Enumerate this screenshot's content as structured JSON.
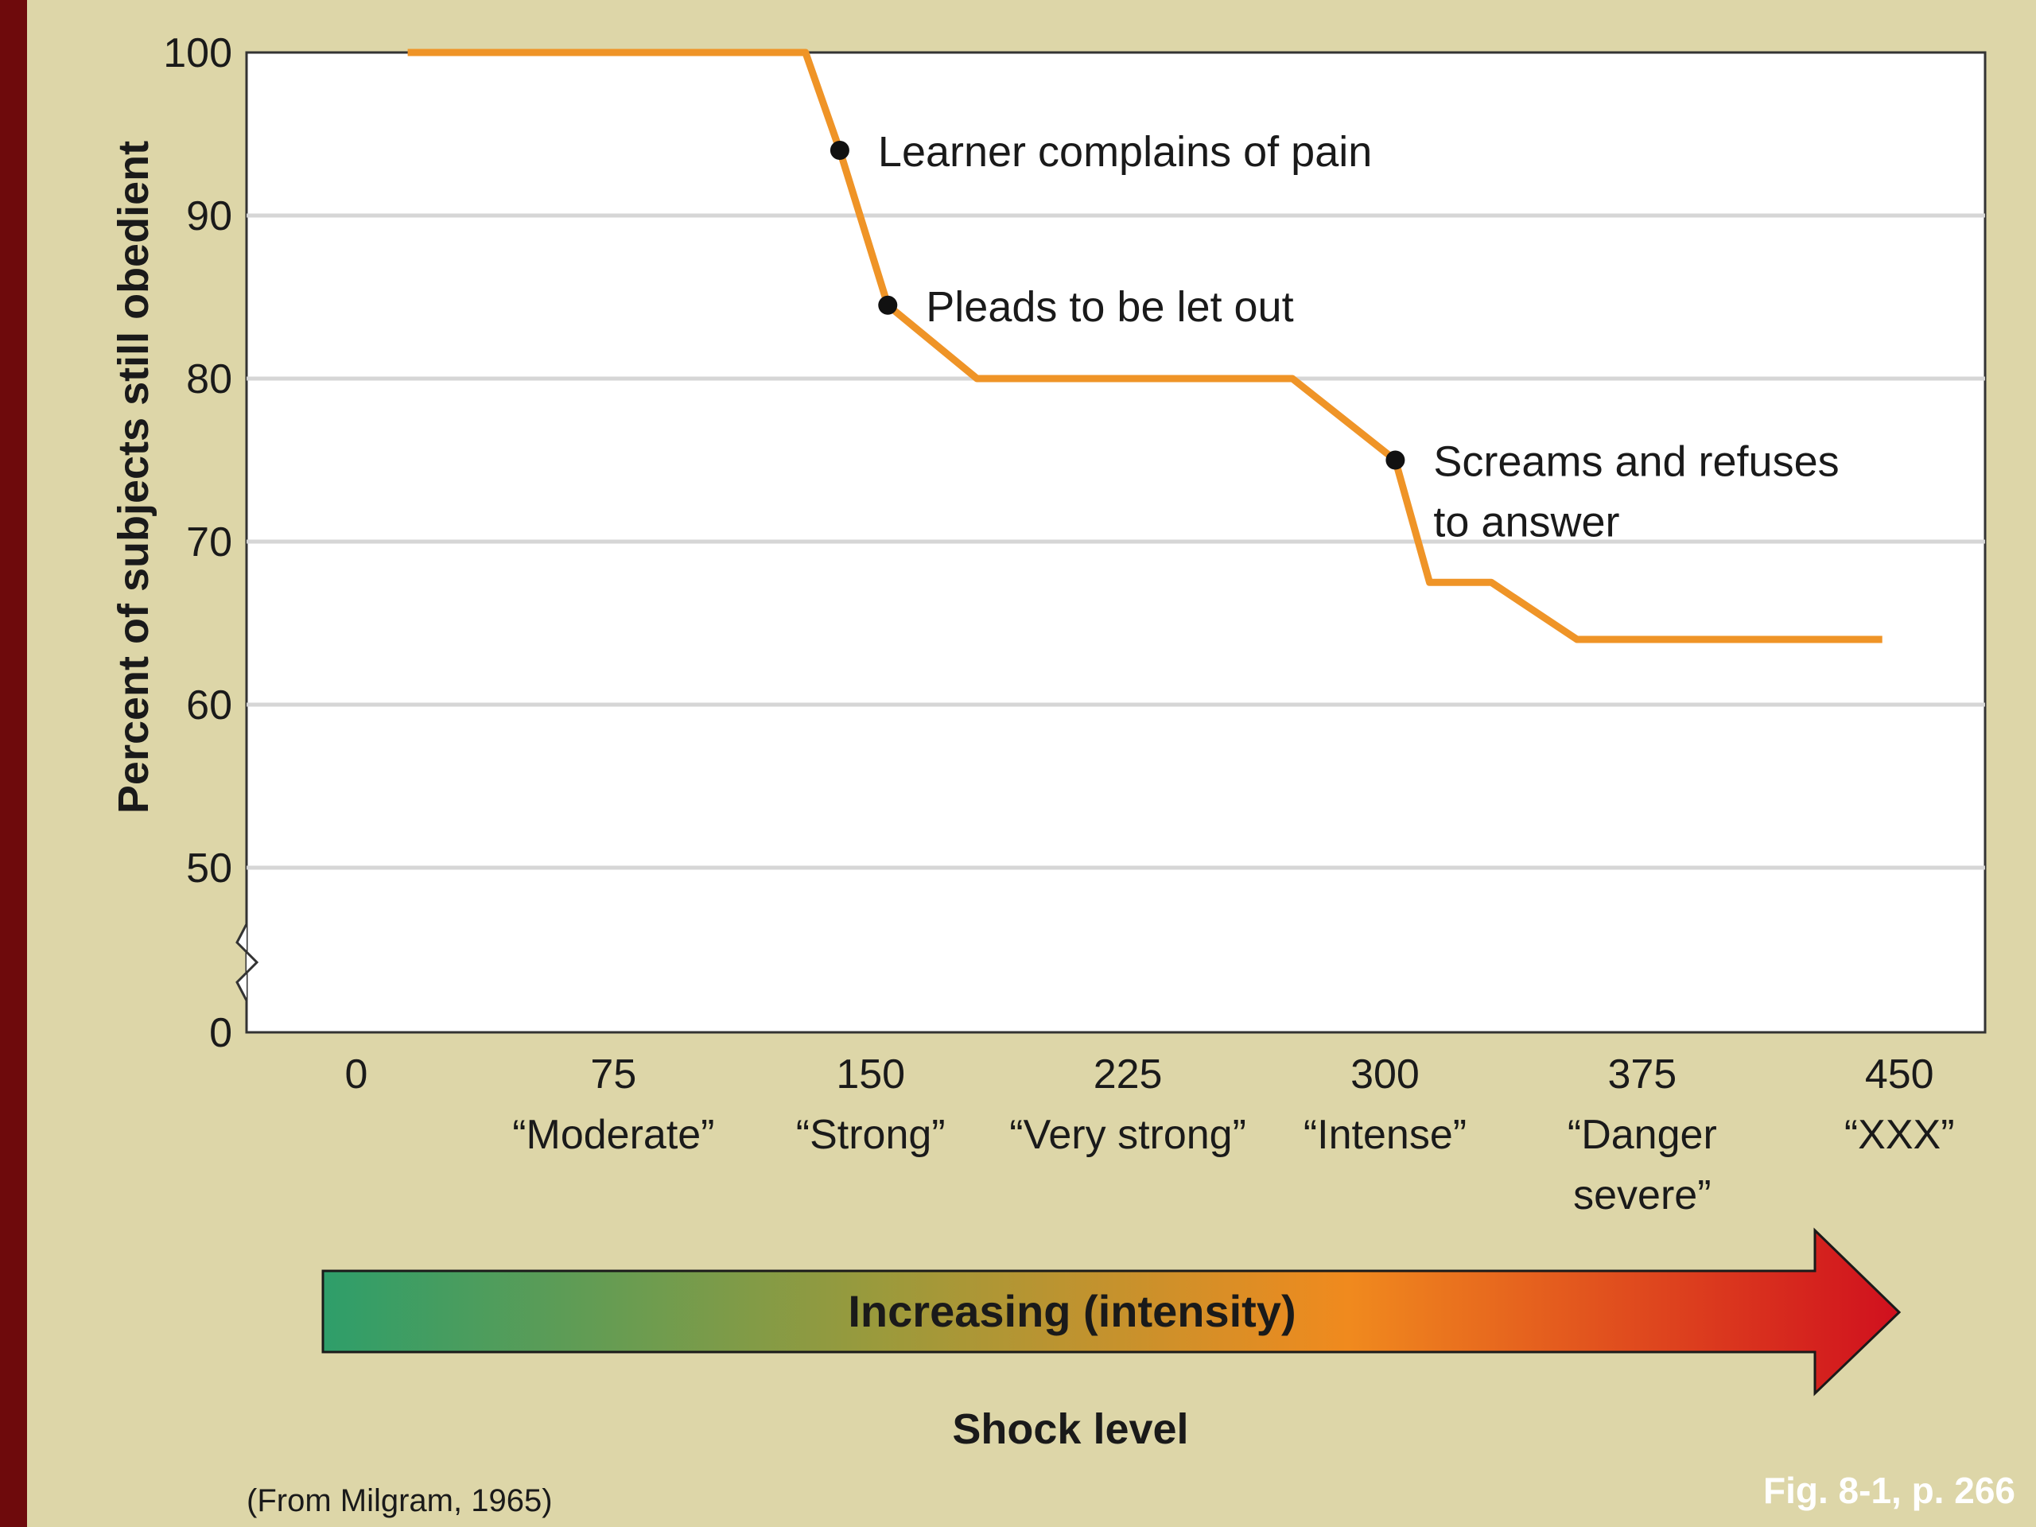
{
  "chart_data": {
    "type": "line",
    "title": "",
    "xlabel": "Shock level",
    "ylabel": "Percent of subjects still obedient",
    "x_ticks": [
      {
        "value": 0,
        "label": [
          "0"
        ]
      },
      {
        "value": 75,
        "label": [
          "75",
          "“Moderate”"
        ]
      },
      {
        "value": 150,
        "label": [
          "150",
          "“Strong”"
        ]
      },
      {
        "value": 225,
        "label": [
          "225",
          "“Very strong”"
        ]
      },
      {
        "value": 300,
        "label": [
          "300",
          "“Intense”"
        ]
      },
      {
        "value": 375,
        "label": [
          "375",
          "“Danger",
          "severe”"
        ]
      },
      {
        "value": 450,
        "label": [
          "450",
          "“XXX”"
        ]
      }
    ],
    "y_ticks": [
      0,
      50,
      60,
      70,
      80,
      90,
      100
    ],
    "y_axis_break": true,
    "ylim": [
      0,
      100
    ],
    "xlim": [
      -32,
      475
    ],
    "grid": true,
    "series": [
      {
        "color": "#ef9427",
        "points": [
          [
            15,
            100
          ],
          [
            131,
            100
          ],
          [
            141,
            94
          ],
          [
            155,
            84.5
          ],
          [
            181,
            80
          ],
          [
            273,
            80
          ],
          [
            303,
            75
          ],
          [
            313,
            67.5
          ],
          [
            331,
            67.5
          ],
          [
            356,
            64
          ],
          [
            445,
            64
          ]
        ]
      }
    ],
    "annotations": [
      {
        "x": 141,
        "y": 94,
        "lines": [
          "Learner complains of pain"
        ]
      },
      {
        "x": 155,
        "y": 84.5,
        "lines": [
          "Pleads to be let out"
        ]
      },
      {
        "x": 303,
        "y": 75,
        "lines": [
          "Screams and refuses",
          "to answer"
        ]
      }
    ],
    "arrow": {
      "label": "Increasing (intensity)",
      "gradient": [
        "#2e9e6a",
        "#9a9a3c",
        "#f08a1e",
        "#d0101e"
      ]
    }
  },
  "source_note": "(From Milgram, 1965)",
  "figure_ref": "Fig. 8-1, p. 266"
}
